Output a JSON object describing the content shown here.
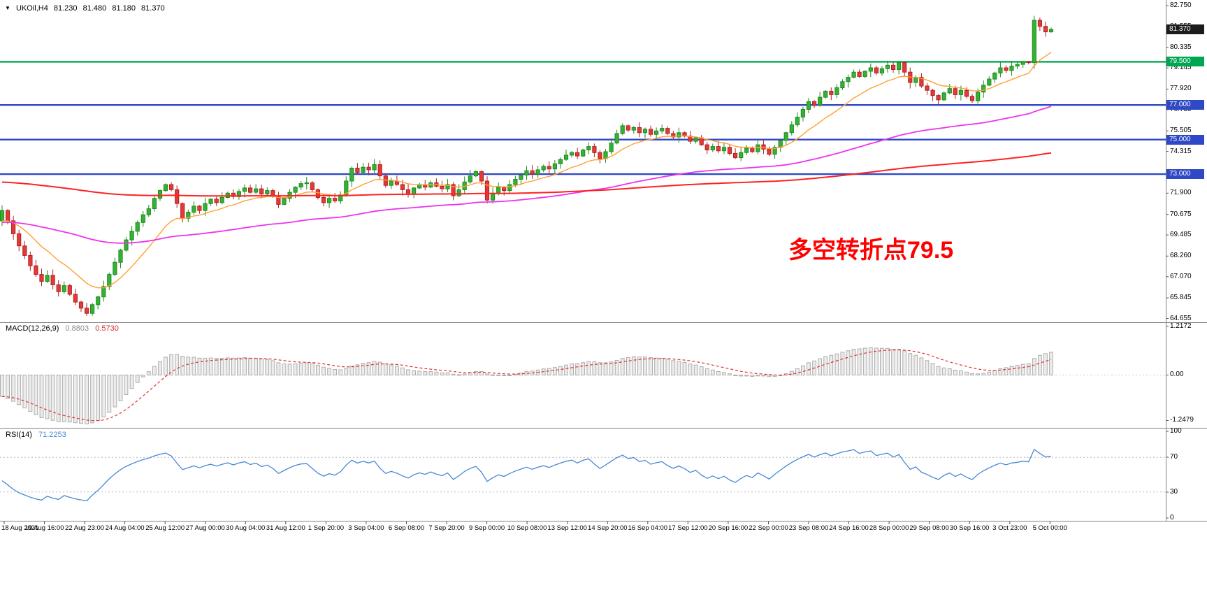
{
  "colors": {
    "background": "#FFFFFF",
    "candle_up_fill": "#35B235",
    "candle_up_border": "#1F8A1F",
    "candle_down_fill": "#E33939",
    "candle_down_border": "#B22222",
    "ma_fast": "#FFA033",
    "ma_mid": "#EE33EE",
    "ma_slow": "#FF2222",
    "level_green": "#00A651",
    "level_blue": "#2F49C6",
    "current_price_badge": "#1C1C1C",
    "macd_hist_fill": "#ECECEC",
    "macd_hist_border": "#ADADAD",
    "macd_signal": "#E03030",
    "rsi_line": "#4688D7",
    "separator": "#808080",
    "annotation_red": "#FF0000"
  },
  "header": {
    "dropdown_icon": "▼",
    "symbol": "UKOil,H4",
    "open": "81.230",
    "high": "81.480",
    "low": "81.180",
    "close": "81.370"
  },
  "annotation": {
    "text": "多空转折点79.5"
  },
  "price_axis": {
    "ticks": [
      "82.750",
      "81.555",
      "80.335",
      "79.145",
      "77.920",
      "76.730",
      "75.505",
      "74.315",
      "73.090",
      "71.900",
      "70.675",
      "69.485",
      "68.260",
      "67.070",
      "65.845",
      "64.655"
    ],
    "current": {
      "label": "81.370"
    }
  },
  "macd_panel": {
    "title": "MACD(12,26,9)",
    "main_value": "0.8803",
    "signal_value": "0.5730",
    "scale_top": "1.2172",
    "scale_zero": "0.00",
    "scale_bottom": "-1.2479"
  },
  "rsi_panel": {
    "title": "RSI(14)",
    "value": "71.2253",
    "scale": [
      "100",
      "70",
      "30",
      "0"
    ]
  },
  "chart_data": {
    "type": "candlestick",
    "symbol": "UKOil",
    "timeframe": "H4",
    "title": "UKOil,H4",
    "grid": false,
    "ylim": [
      64.655,
      82.75
    ],
    "current_bar": {
      "open": 81.23,
      "high": 81.48,
      "low": 81.18,
      "close": 81.37
    },
    "first_open": 70.3,
    "closes": [
      70.9,
      70.3,
      69.55,
      68.85,
      68.3,
      67.7,
      67.2,
      66.8,
      67.15,
      66.6,
      66.2,
      66.55,
      66.05,
      65.6,
      65.25,
      64.95,
      65.45,
      65.9,
      66.5,
      67.2,
      67.9,
      68.6,
      69.2,
      69.7,
      70.2,
      70.65,
      71.0,
      71.6,
      72.05,
      72.4,
      72.1,
      71.3,
      70.45,
      70.8,
      71.15,
      70.9,
      71.3,
      71.55,
      71.35,
      71.65,
      71.9,
      71.7,
      72.0,
      72.2,
      71.95,
      72.15,
      71.85,
      72.05,
      71.75,
      71.25,
      71.6,
      71.95,
      72.25,
      72.45,
      72.5,
      72.1,
      71.65,
      71.35,
      71.6,
      71.45,
      71.8,
      72.6,
      73.35,
      73.1,
      73.4,
      73.25,
      73.55,
      72.9,
      72.35,
      72.6,
      72.4,
      72.1,
      71.85,
      72.2,
      72.4,
      72.25,
      72.5,
      72.3,
      72.15,
      72.4,
      71.75,
      72.1,
      72.55,
      72.9,
      73.15,
      72.6,
      71.5,
      71.9,
      72.25,
      72.05,
      72.4,
      72.7,
      72.95,
      73.2,
      73.0,
      73.25,
      73.45,
      73.3,
      73.6,
      73.85,
      74.1,
      74.25,
      74.05,
      74.4,
      74.6,
      74.25,
      73.9,
      74.3,
      74.8,
      75.35,
      75.8,
      75.55,
      75.7,
      75.4,
      75.6,
      75.3,
      75.5,
      75.65,
      75.35,
      75.15,
      75.4,
      75.2,
      74.9,
      75.1,
      74.7,
      74.4,
      74.6,
      74.35,
      74.55,
      74.2,
      73.95,
      74.25,
      74.5,
      74.3,
      74.7,
      74.45,
      74.15,
      74.55,
      74.95,
      75.4,
      75.85,
      76.3,
      76.75,
      77.2,
      77.0,
      77.45,
      77.8,
      77.6,
      78.0,
      78.35,
      78.6,
      78.9,
      78.65,
      78.95,
      79.15,
      78.85,
      79.1,
      79.3,
      79.05,
      79.45,
      78.9,
      78.3,
      78.6,
      78.1,
      77.85,
      77.55,
      77.3,
      77.7,
      77.95,
      77.6,
      77.85,
      77.5,
      77.25,
      77.75,
      78.15,
      78.5,
      78.85,
      79.15,
      79.0,
      79.25,
      79.35,
      79.5,
      79.45,
      81.9,
      81.55,
      81.23,
      81.37
    ],
    "levels": [
      {
        "label": "79.500",
        "price": 79.5,
        "color_key": "level_green"
      },
      {
        "label": "77.000",
        "price": 77.0,
        "color_key": "level_blue"
      },
      {
        "label": "75.000",
        "price": 75.0,
        "color_key": "level_blue"
      },
      {
        "label": "73.000",
        "price": 73.0,
        "color_key": "level_blue"
      }
    ],
    "moving_averages": [
      {
        "name": "fast",
        "period": 13,
        "seed": 70.2,
        "color_key": "ma_fast",
        "width": 1.4
      },
      {
        "name": "mid",
        "period": 90,
        "seed": 70.2,
        "color_key": "ma_mid",
        "width": 1.8
      },
      {
        "name": "slow",
        "period": 300,
        "seed": 72.55,
        "color_key": "ma_slow",
        "width": 2.0
      }
    ],
    "macd": {
      "fast": 12,
      "slow": 26,
      "signal": 9,
      "seed_fast": 72.3,
      "seed_slow": 73.1,
      "scale_max": 1.2172,
      "scale_min": -1.2479,
      "current_main": 0.8803,
      "current_signal": 0.573
    },
    "rsi": {
      "period": 14,
      "levels": [
        70,
        30
      ],
      "current": 71.2253,
      "seed_avg_gain": 0.12,
      "seed_avg_loss": 0.22
    },
    "time_labels": [
      "18 Aug 2021",
      "19 Aug 16:00",
      "22 Aug 23:00",
      "24 Aug 04:00",
      "25 Aug 12:00",
      "27 Aug 00:00",
      "30 Aug 04:00",
      "31 Aug 12:00",
      "1 Sep 20:00",
      "3 Sep 04:00",
      "6 Sep 08:00",
      "7 Sep 20:00",
      "9 Sep 00:00",
      "10 Sep 08:00",
      "13 Sep 12:00",
      "14 Sep 20:00",
      "16 Sep 04:00",
      "17 Sep 12:00",
      "20 Sep 16:00",
      "22 Sep 00:00",
      "23 Sep 08:00",
      "24 Sep 16:00",
      "28 Sep 00:00",
      "29 Sep 08:00",
      "30 Sep 16:00",
      "3 Oct 23:00",
      "5 Oct 00:00"
    ]
  }
}
